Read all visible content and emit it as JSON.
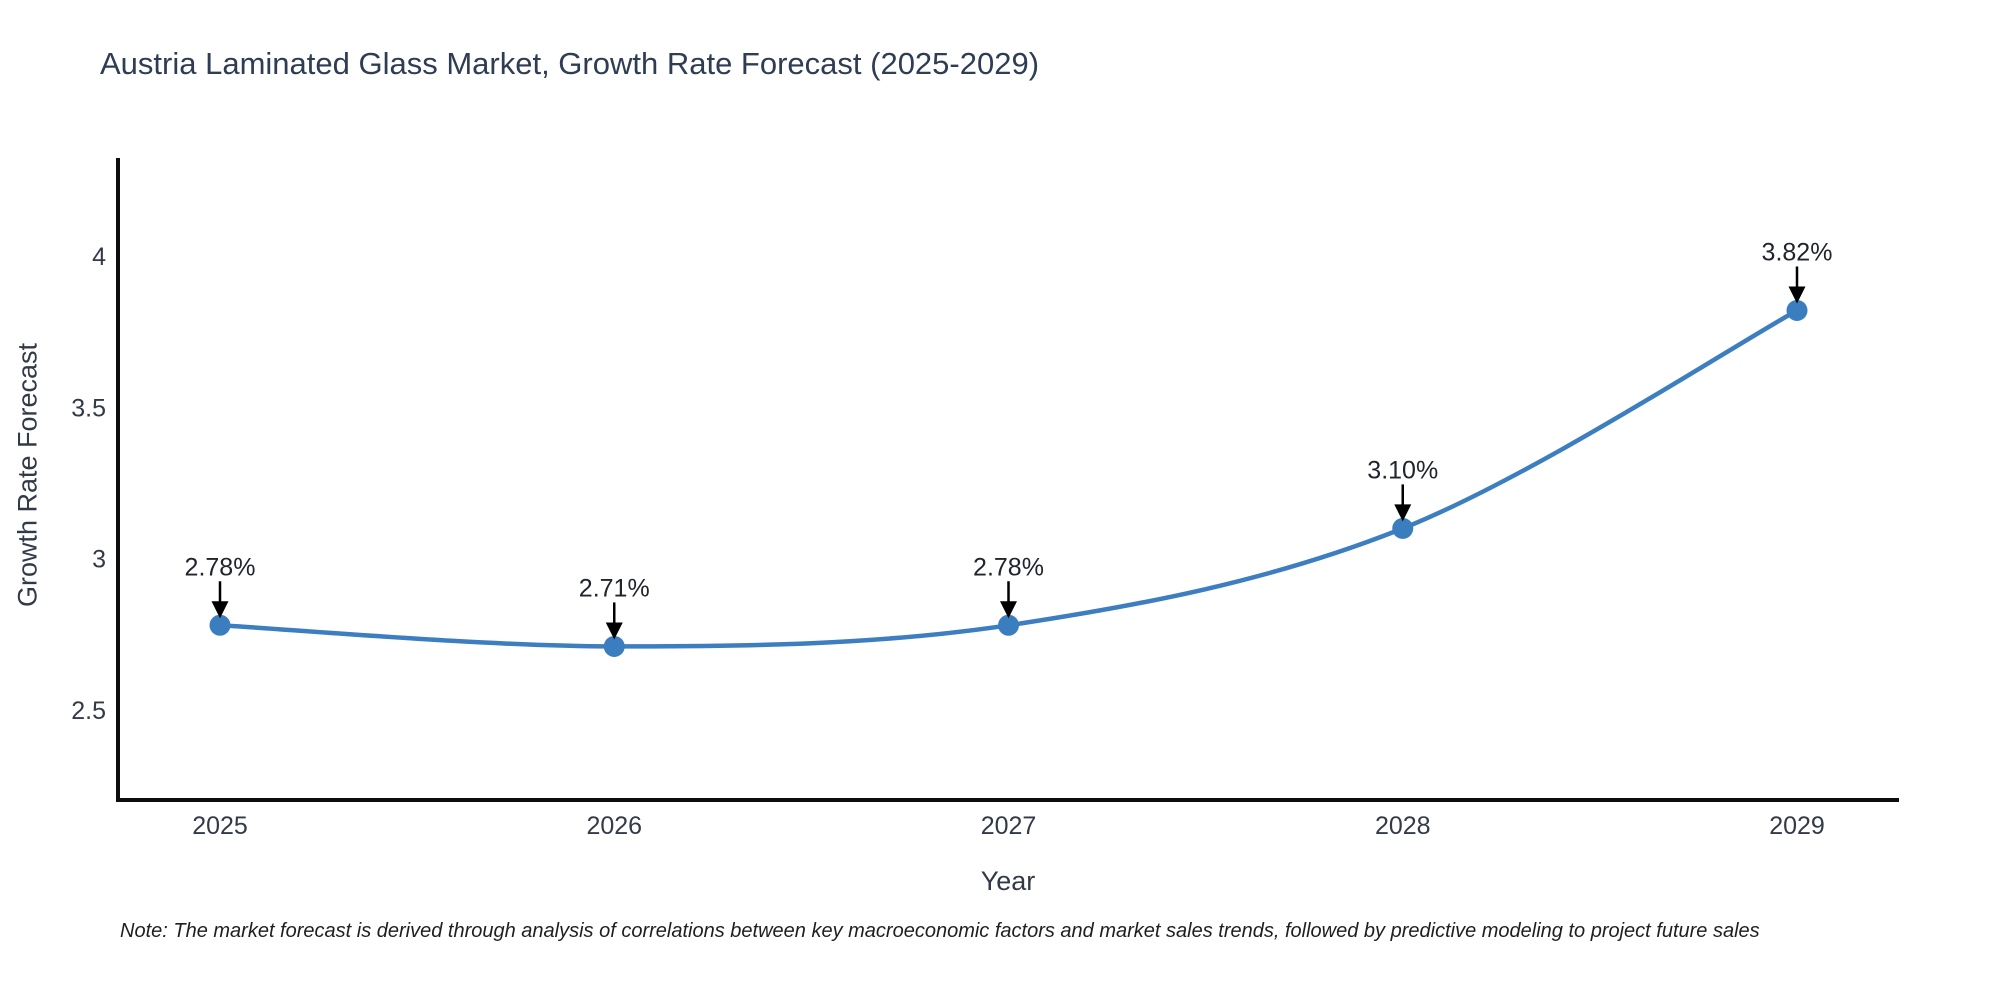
{
  "title": "Austria Laminated Glass Market, Growth Rate Forecast (2025-2029)",
  "note": "Note: The market forecast is derived through analysis of correlations between key macroeconomic factors and market sales trends, followed by predictive modeling to project future sales",
  "chart_data": {
    "type": "line",
    "title": "Austria Laminated Glass Market, Growth Rate Forecast (2025-2029)",
    "xlabel": "Year",
    "ylabel": "Growth Rate Forecast",
    "x": [
      2025,
      2026,
      2027,
      2028,
      2029
    ],
    "values": [
      2.78,
      2.71,
      2.78,
      3.1,
      3.82
    ],
    "point_labels": [
      "2.78%",
      "2.71%",
      "2.78%",
      "3.10%",
      "3.82%"
    ],
    "x_ticks": [
      "2025",
      "2026",
      "2027",
      "2028",
      "2029"
    ],
    "y_ticks": [
      2.5,
      3,
      3.5,
      4
    ],
    "ylim": [
      2.2,
      4.32
    ],
    "grid": false,
    "legend": false,
    "annotation_style": "down-arrow"
  },
  "colors": {
    "line": "#3c7ebf",
    "marker": "#3a7ebf",
    "spine": "#0d0d0d",
    "arrow": "#000000",
    "title_text": "#2e3d54",
    "axis_text": "#333a47",
    "annotation_text": "#20242c",
    "background": "#ffffff"
  }
}
